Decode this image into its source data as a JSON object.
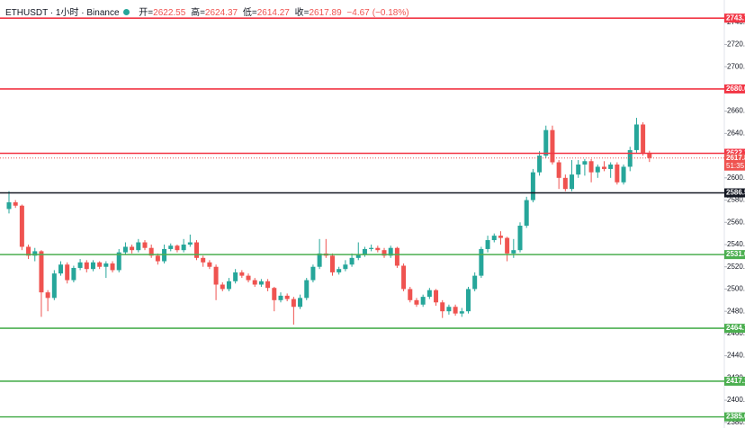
{
  "chart_data": {
    "type": "candlestick",
    "header": {
      "symbol": "ETHUSDT · 1小时 · Binance",
      "open_label": "开=",
      "open": 2622.55,
      "high_label": "高=",
      "high": 2624.37,
      "low_label": "低=",
      "low": 2614.27,
      "close_label": "收=",
      "close": 2617.89,
      "change": {
        "value": -4.67,
        "label": "−4.67"
      },
      "change_pct": {
        "value": -0.18,
        "label": "(−0.18%)"
      }
    },
    "up_color": "#26a69a",
    "down_color": "#ef5350",
    "grid": false,
    "ylim": [
      2375,
      2760
    ],
    "yticks": [
      {
        "value": 2740,
        "label": "2740.0"
      },
      {
        "value": 2720,
        "label": "2720.0"
      },
      {
        "value": 2700,
        "label": "2700.0"
      },
      {
        "value": 2680,
        "label": "2680.0"
      },
      {
        "value": 2660,
        "label": "2660.0"
      },
      {
        "value": 2640,
        "label": "2640.0"
      },
      {
        "value": 2620,
        "label": "2620.0"
      },
      {
        "value": 2600,
        "label": "2600.0"
      },
      {
        "value": 2580,
        "label": "2580.0"
      },
      {
        "value": 2560,
        "label": "2560.0"
      },
      {
        "value": 2540,
        "label": "2540.0"
      },
      {
        "value": 2520,
        "label": "2520.0"
      },
      {
        "value": 2500,
        "label": "2500.0"
      },
      {
        "value": 2480,
        "label": "2480.0"
      },
      {
        "value": 2460,
        "label": "2460.0"
      },
      {
        "value": 2440,
        "label": "2440.0"
      },
      {
        "value": 2420,
        "label": "2420.0"
      },
      {
        "value": 2400,
        "label": "2400.0"
      },
      {
        "value": 2380,
        "label": "2380.0"
      }
    ],
    "levels": [
      {
        "value": 2743.7,
        "label": "2743.7",
        "color": "#f23645"
      },
      {
        "value": 2680.0,
        "label": "2680.0",
        "color": "#f23645"
      },
      {
        "value": 2622.1,
        "label": "2622.1",
        "color": "#f23645"
      },
      {
        "value": 2586.5,
        "label": "2586.5",
        "color": "#131722"
      },
      {
        "value": 2531.0,
        "label": "2531.0",
        "color": "#4caf50"
      },
      {
        "value": 2464.7,
        "label": "2464.7",
        "color": "#4caf50"
      },
      {
        "value": 2417.1,
        "label": "2417.1",
        "color": "#4caf50"
      },
      {
        "value": 2385.0,
        "label": "2385.0",
        "color": "#4caf50"
      }
    ],
    "last_price": {
      "value": 2617.89,
      "label": "2617.89",
      "countdown": "51:35",
      "color": "#ef5350"
    },
    "open": [
      2572,
      2578,
      2575,
      2538,
      2530,
      2534,
      2497,
      2492,
      2514,
      2522,
      2508,
      2519,
      2524,
      2518,
      2524,
      2520,
      2523,
      2517,
      2533,
      2538,
      2535,
      2542,
      2537,
      2530,
      2525,
      2536,
      2539,
      2535,
      2540,
      2542,
      2528,
      2524,
      2520,
      2504,
      2500,
      2507,
      2515,
      2512,
      2508,
      2504,
      2507,
      2501,
      2490,
      2494,
      2491,
      2484,
      2492,
      2508,
      2520,
      2532,
      2530,
      2515,
      2518,
      2522,
      2528,
      2531,
      2536,
      2537,
      2535,
      2530,
      2537,
      2521,
      2500,
      2490,
      2486,
      2493,
      2499,
      2488,
      2480,
      2484,
      2478,
      2480,
      2500,
      2512,
      2536,
      2544,
      2548,
      2546,
      2532,
      2535,
      2557,
      2580,
      2605,
      2620,
      2643,
      2614,
      2600,
      2590,
      2603,
      2612,
      2615,
      2605,
      2610,
      2608,
      2612,
      2596,
      2610,
      2625,
      2648,
      2622.55
    ],
    "high": [
      2588,
      2580,
      2576,
      2540,
      2537,
      2535,
      2499,
      2517,
      2525,
      2524,
      2521,
      2527,
      2526,
      2526,
      2525,
      2525,
      2525,
      2536,
      2542,
      2540,
      2545,
      2544,
      2540,
      2532,
      2540,
      2541,
      2540,
      2545,
      2549,
      2544,
      2530,
      2526,
      2522,
      2506,
      2510,
      2518,
      2517,
      2514,
      2510,
      2509,
      2509,
      2502,
      2497,
      2496,
      2493,
      2495,
      2510,
      2522,
      2545,
      2545,
      2532,
      2520,
      2526,
      2532,
      2542,
      2538,
      2540,
      2539,
      2537,
      2539,
      2538,
      2523,
      2502,
      2492,
      2495,
      2501,
      2500,
      2490,
      2486,
      2486,
      2483,
      2502,
      2515,
      2538,
      2548,
      2550,
      2552,
      2547,
      2545,
      2560,
      2583,
      2608,
      2624,
      2647,
      2647,
      2616,
      2603,
      2616,
      2616,
      2617,
      2617,
      2612,
      2615,
      2614,
      2614,
      2612,
      2628,
      2654,
      2650,
      2624.37
    ],
    "low": [
      2568,
      2573,
      2535,
      2527,
      2525,
      2475,
      2480,
      2490,
      2512,
      2505,
      2506,
      2517,
      2515,
      2516,
      2518,
      2510,
      2515,
      2515,
      2531,
      2532,
      2533,
      2535,
      2528,
      2522,
      2523,
      2534,
      2533,
      2533,
      2538,
      2526,
      2520,
      2518,
      2490,
      2498,
      2498,
      2505,
      2510,
      2506,
      2502,
      2502,
      2498,
      2480,
      2488,
      2489,
      2468,
      2482,
      2490,
      2506,
      2518,
      2528,
      2512,
      2513,
      2516,
      2520,
      2526,
      2529,
      2534,
      2533,
      2528,
      2528,
      2519,
      2498,
      2488,
      2484,
      2484,
      2491,
      2485,
      2474,
      2477,
      2476,
      2475,
      2478,
      2498,
      2510,
      2533,
      2542,
      2540,
      2525,
      2528,
      2533,
      2555,
      2578,
      2602,
      2618,
      2612,
      2590,
      2588,
      2588,
      2600,
      2602,
      2596,
      2600,
      2606,
      2600,
      2594,
      2594,
      2606,
      2622,
      2620,
      2614.27
    ],
    "close": [
      2578,
      2575,
      2538,
      2530,
      2534,
      2497,
      2492,
      2514,
      2522,
      2508,
      2519,
      2524,
      2518,
      2524,
      2520,
      2523,
      2517,
      2533,
      2538,
      2535,
      2542,
      2537,
      2530,
      2525,
      2536,
      2539,
      2535,
      2540,
      2542,
      2528,
      2524,
      2520,
      2504,
      2500,
      2507,
      2515,
      2512,
      2508,
      2504,
      2507,
      2501,
      2490,
      2494,
      2491,
      2484,
      2492,
      2508,
      2520,
      2532,
      2530,
      2515,
      2518,
      2522,
      2528,
      2531,
      2536,
      2537,
      2535,
      2530,
      2537,
      2521,
      2500,
      2490,
      2486,
      2493,
      2499,
      2488,
      2480,
      2484,
      2478,
      2480,
      2500,
      2512,
      2536,
      2544,
      2548,
      2546,
      2532,
      2535,
      2557,
      2580,
      2605,
      2620,
      2643,
      2614,
      2600,
      2590,
      2603,
      2612,
      2615,
      2605,
      2610,
      2608,
      2612,
      2596,
      2610,
      2625,
      2648,
      2622.55,
      2617.89
    ]
  }
}
